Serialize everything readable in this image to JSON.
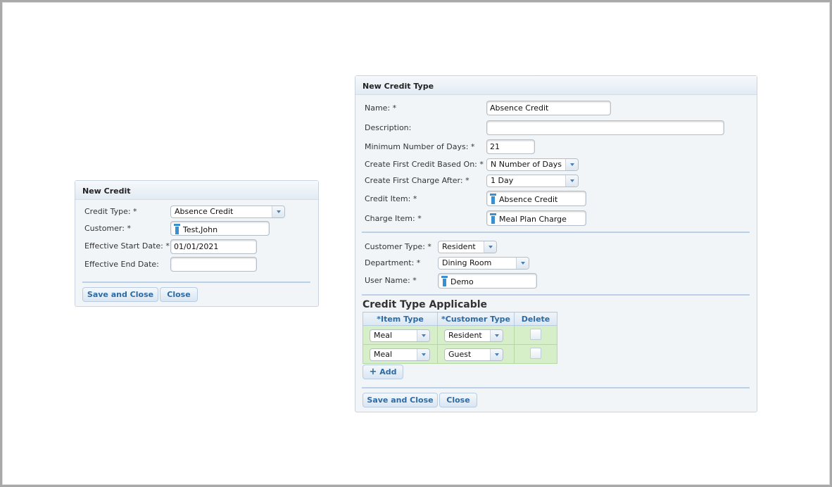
{
  "new_credit": {
    "title": "New Credit",
    "credit_type_label": "Credit Type:  *",
    "credit_type_value": "Absence Credit",
    "customer_label": "Customer:  *",
    "customer_value": "Test,John",
    "start_date_label": "Effective Start Date:  *",
    "start_date_value": "01/01/2021",
    "end_date_label": "Effective End Date:",
    "end_date_value": "",
    "save_label": "Save and Close",
    "close_label": "Close"
  },
  "new_credit_type": {
    "title": "New Credit Type",
    "name_label": "Name: *",
    "name_value": "Absence Credit",
    "description_label": "Description:",
    "description_value": "",
    "min_days_label": "Minimum Number of Days:  *",
    "min_days_value": "21",
    "first_credit_label": "Create First Credit Based On:  *",
    "first_credit_value": "N Number of Days",
    "first_charge_label": "Create First Charge After:  *",
    "first_charge_value": "1 Day",
    "credit_item_label": "Credit Item:  *",
    "credit_item_value": "Absence Credit",
    "charge_item_label": "Charge Item:  *",
    "charge_item_value": "Meal Plan Charge",
    "customer_type_label": "Customer Type:  *",
    "customer_type_value": "Resident",
    "department_label": "Department:  *",
    "department_value": "Dining Room",
    "user_name_label": "User Name:  *",
    "user_name_value": "Demo",
    "applicable_heading": "Credit Type Applicable",
    "columns": [
      "*Item Type",
      "*Customer Type",
      "Delete"
    ],
    "rows": [
      {
        "item_type": "Meal",
        "customer_type": "Resident",
        "delete": false
      },
      {
        "item_type": "Meal",
        "customer_type": "Guest",
        "delete": false
      }
    ],
    "add_label": "Add",
    "save_label": "Save and Close",
    "close_label": "Close"
  }
}
